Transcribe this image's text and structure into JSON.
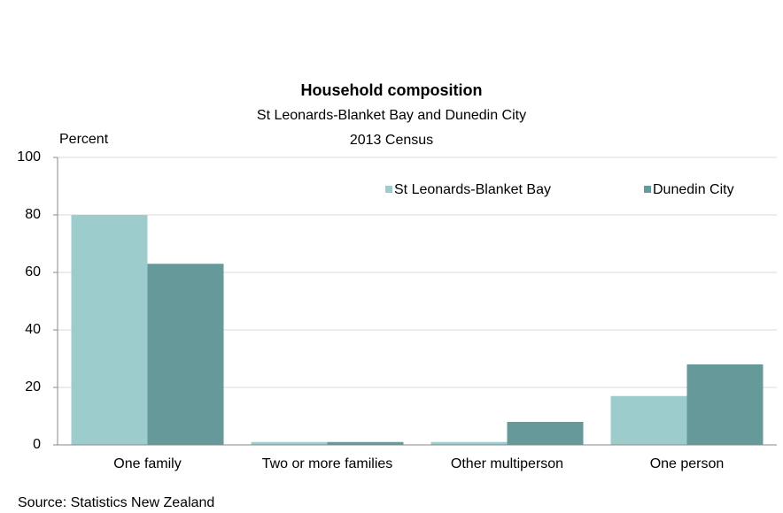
{
  "chart_data": {
    "type": "bar",
    "title": "Household composition",
    "subtitle": "St Leonards-Blanket Bay and Dunedin City",
    "subtitle2": "2013 Census",
    "y_label": "Percent",
    "source": "Source: Statistics New Zealand",
    "categories": [
      "One family",
      "Two or more families",
      "Other multiperson",
      "One person"
    ],
    "series": [
      {
        "name": "St Leonards-Blanket Bay",
        "color": "#9ccccc",
        "values": [
          80,
          1,
          1,
          17
        ]
      },
      {
        "name": "Dunedin City",
        "color": "#669999",
        "values": [
          63,
          1,
          8,
          28
        ]
      }
    ],
    "ylim": [
      0,
      100
    ],
    "yticks": [
      0,
      20,
      40,
      60,
      80,
      100
    ],
    "grid": true,
    "legend": "top-right"
  }
}
